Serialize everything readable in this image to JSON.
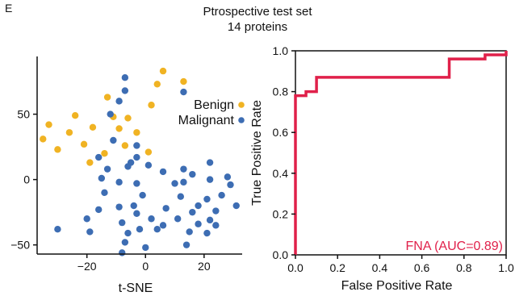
{
  "panel_label": "E",
  "figure": {
    "title_line1": "Ptrospective test set",
    "title_line2": "14 proteins"
  },
  "colors": {
    "benign": "#f0b323",
    "malignant": "#3d6db3",
    "roc": "#e0204a",
    "axis": "#111111"
  },
  "chart_data": [
    {
      "type": "scatter",
      "xlabel": "t-SNE",
      "ylabel": "",
      "xlim": [
        -37,
        33
      ],
      "ylim": [
        -57,
        88
      ],
      "xticks": [
        -20,
        0,
        20
      ],
      "yticks": [
        -50,
        0,
        50
      ],
      "legend_position": "top-right",
      "grid": false,
      "series": [
        {
          "name": "Benign",
          "color": "#f0b323",
          "points": [
            [
              -35,
              31
            ],
            [
              -33,
              42
            ],
            [
              -30,
              23
            ],
            [
              -26,
              36
            ],
            [
              -24,
              49
            ],
            [
              -21,
              27
            ],
            [
              -19,
              13
            ],
            [
              -18,
              40
            ],
            [
              -14,
              20
            ],
            [
              -13,
              63
            ],
            [
              -11,
              48
            ],
            [
              -9,
              39
            ],
            [
              -7,
              26
            ],
            [
              -6,
              47
            ],
            [
              -3,
              36
            ],
            [
              1,
              21
            ],
            [
              2,
              57
            ],
            [
              4,
              73
            ],
            [
              6,
              83
            ],
            [
              13,
              75
            ]
          ]
        },
        {
          "name": "Malignant",
          "color": "#3d6db3",
          "points": [
            [
              -7,
              78
            ],
            [
              -7,
              68
            ],
            [
              -9,
              60
            ],
            [
              -12,
              50
            ],
            [
              -3,
              26
            ],
            [
              -11,
              30
            ],
            [
              -16,
              17
            ],
            [
              -15,
              1
            ],
            [
              -13,
              8
            ],
            [
              -14,
              -10
            ],
            [
              -16,
              -23
            ],
            [
              -9,
              -2
            ],
            [
              -6,
              10
            ],
            [
              -3,
              17
            ],
            [
              1,
              11
            ],
            [
              6,
              6
            ],
            [
              -3,
              -3
            ],
            [
              -4,
              -20
            ],
            [
              -5,
              13
            ],
            [
              10,
              -3
            ],
            [
              13,
              -2
            ],
            [
              16,
              4
            ],
            [
              13,
              8
            ],
            [
              22,
              13
            ],
            [
              22,
              0
            ],
            [
              28,
              2
            ],
            [
              21,
              -15
            ],
            [
              24,
              -24
            ],
            [
              26,
              -12
            ],
            [
              29,
              -4
            ],
            [
              31,
              -20
            ],
            [
              -20,
              -30
            ],
            [
              -30,
              -38
            ],
            [
              -19,
              -40
            ],
            [
              -8,
              -33
            ],
            [
              -6,
              -41
            ],
            [
              -7,
              -48
            ],
            [
              -8,
              -56
            ],
            [
              -3,
              -26
            ],
            [
              -2,
              -38
            ],
            [
              0,
              -52
            ],
            [
              6,
              -35
            ],
            [
              7,
              -22
            ],
            [
              11,
              -30
            ],
            [
              16,
              -25
            ],
            [
              18,
              -20
            ],
            [
              15,
              -40
            ],
            [
              14,
              -50
            ],
            [
              21,
              -41
            ],
            [
              22,
              -31
            ],
            [
              24,
              -35
            ],
            [
              4,
              -38
            ],
            [
              -9,
              -21
            ],
            [
              2,
              -30
            ],
            [
              -1,
              -12
            ],
            [
              18,
              -34
            ],
            [
              12,
              -13
            ],
            [
              13,
              67
            ]
          ]
        }
      ]
    },
    {
      "type": "line",
      "xlabel": "False Positive Rate",
      "ylabel": "True Positive Rate",
      "xlim": [
        0,
        1
      ],
      "ylim": [
        0,
        1
      ],
      "xticks": [
        0.0,
        0.2,
        0.4,
        0.6,
        0.8,
        1.0
      ],
      "xtick_labels": [
        "0.0",
        "0.2",
        "0.4",
        "0.6",
        "0.8",
        "1.0"
      ],
      "yticks": [
        0.0,
        0.2,
        0.4,
        0.6,
        0.8,
        1.0
      ],
      "ytick_labels": [
        "0.0",
        "0.2",
        "0.4",
        "0.6",
        "0.8",
        "1.0"
      ],
      "grid": false,
      "annotation": "FNA (AUC=0.89)",
      "series": [
        {
          "name": "FNA",
          "color": "#e0204a",
          "x": [
            0.0,
            0.0,
            0.0,
            0.05,
            0.05,
            0.1,
            0.1,
            0.73,
            0.73,
            0.9,
            0.9,
            1.0,
            1.0
          ],
          "y": [
            0.0,
            0.0,
            0.78,
            0.78,
            0.8,
            0.8,
            0.87,
            0.87,
            0.96,
            0.96,
            0.98,
            0.98,
            1.0
          ]
        }
      ]
    }
  ]
}
